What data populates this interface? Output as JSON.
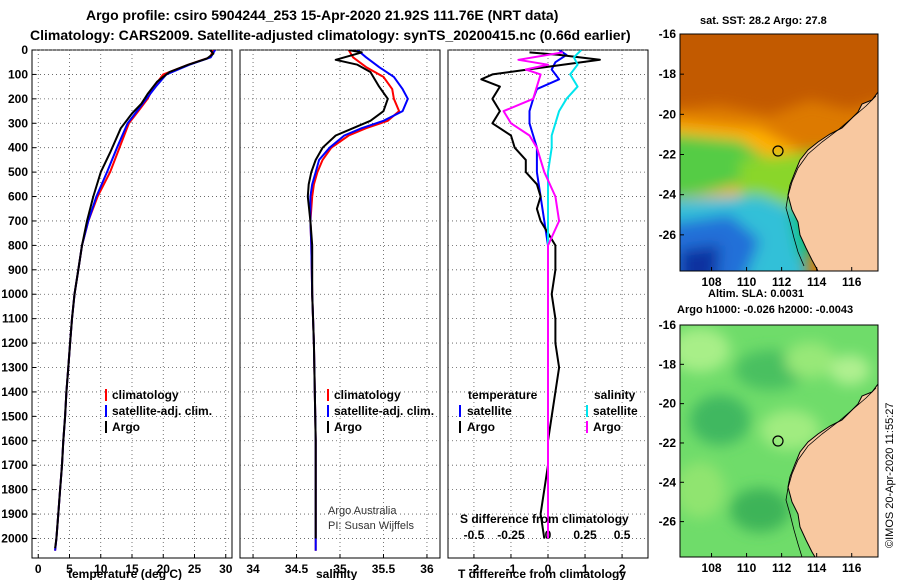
{
  "title_line1": "Argo profile: csiro 5904244_253 15-Apr-2020 21.92S 111.76E (NRT data)",
  "title_line2": "Climatology: CARS2009. Satellite-adjusted climatology: synTS_20200415.nc (0.66d earlier)",
  "credit": "©IMOS 20-Apr-2020 11:55:27",
  "colors": {
    "argo": "#000000",
    "clim": "#ff0000",
    "sat": "#0000ff",
    "sal_sat": "#00e5ee",
    "sal_argo": "#ff00ff",
    "land": "#f8c8a0"
  },
  "chart_data": [
    {
      "type": "line",
      "xlabel": "temperature (deg C)",
      "xticks": [
        "0",
        "5",
        "10",
        "15",
        "20",
        "25",
        "30"
      ],
      "xlim": [
        -1,
        31
      ],
      "ylim": [
        2080,
        0
      ],
      "yticks": [
        "0",
        "100",
        "200",
        "300",
        "400",
        "500",
        "600",
        "700",
        "800",
        "900",
        "1000",
        "1100",
        "1200",
        "1300",
        "1400",
        "1500",
        "1600",
        "1700",
        "1800",
        "1900",
        "2000"
      ],
      "legend": [
        "climatology",
        "satellite-adj. clim.",
        "Argo"
      ],
      "series": [
        {
          "name": "climatology",
          "color": "#ff0000",
          "points": [
            [
              28,
              0
            ],
            [
              27.5,
              30
            ],
            [
              24,
              60
            ],
            [
              20,
              100
            ],
            [
              18.5,
              150
            ],
            [
              17.5,
              200
            ],
            [
              16,
              250
            ],
            [
              14.5,
              300
            ],
            [
              13,
              400
            ],
            [
              11.5,
              500
            ],
            [
              9.5,
              600
            ],
            [
              8,
              700
            ],
            [
              7,
              800
            ],
            [
              6.4,
              900
            ],
            [
              5.8,
              1000
            ],
            [
              5.4,
              1100
            ],
            [
              5.1,
              1200
            ],
            [
              4.8,
              1300
            ],
            [
              4.5,
              1400
            ],
            [
              4.3,
              1500
            ],
            [
              4,
              1600
            ],
            [
              3.8,
              1700
            ],
            [
              3.5,
              1800
            ],
            [
              3.2,
              1900
            ],
            [
              2.9,
              2000
            ],
            [
              2.7,
              2050
            ]
          ]
        },
        {
          "name": "satellite-adj. clim.",
          "color": "#0000ff",
          "points": [
            [
              28.3,
              0
            ],
            [
              27.6,
              30
            ],
            [
              24.2,
              60
            ],
            [
              20.5,
              100
            ],
            [
              18.8,
              150
            ],
            [
              17.3,
              200
            ],
            [
              15.8,
              250
            ],
            [
              14.3,
              300
            ],
            [
              12.6,
              400
            ],
            [
              11,
              500
            ],
            [
              9.3,
              600
            ],
            [
              8,
              700
            ],
            [
              7,
              800
            ],
            [
              6.4,
              900
            ],
            [
              5.8,
              1000
            ],
            [
              5.4,
              1100
            ],
            [
              5.1,
              1200
            ],
            [
              4.8,
              1300
            ],
            [
              4.5,
              1400
            ],
            [
              4.3,
              1500
            ],
            [
              4,
              1600
            ],
            [
              3.8,
              1700
            ],
            [
              3.5,
              1800
            ],
            [
              3.2,
              1900
            ],
            [
              2.9,
              2000
            ],
            [
              2.7,
              2050
            ]
          ]
        },
        {
          "name": "Argo",
          "color": "#000000",
          "points": [
            [
              27.5,
              0
            ],
            [
              28,
              15
            ],
            [
              27,
              35
            ],
            [
              24,
              60
            ],
            [
              21,
              90
            ],
            [
              19,
              130
            ],
            [
              17.5,
              180
            ],
            [
              16.5,
              220
            ],
            [
              15,
              260
            ],
            [
              13.2,
              320
            ],
            [
              11.5,
              420
            ],
            [
              10,
              500
            ],
            [
              8.8,
              600
            ],
            [
              7.8,
              700
            ],
            [
              7,
              800
            ],
            [
              6.4,
              900
            ],
            [
              5.8,
              1000
            ],
            [
              5.4,
              1100
            ],
            [
              5.1,
              1200
            ],
            [
              4.8,
              1300
            ],
            [
              4.5,
              1400
            ],
            [
              4.3,
              1500
            ],
            [
              4,
              1600
            ],
            [
              3.8,
              1700
            ],
            [
              3.5,
              1800
            ],
            [
              3.2,
              1900
            ],
            [
              2.9,
              2000
            ],
            [
              2.7,
              2040
            ]
          ]
        }
      ]
    },
    {
      "type": "line",
      "xlabel": "salinity",
      "xticks": [
        "34",
        "34.5",
        "35",
        "35.5",
        "36"
      ],
      "xlim": [
        33.85,
        36.15
      ],
      "ylim": [
        2080,
        0
      ],
      "legend": [
        "climatology",
        "satellite-adj. clim.",
        "Argo"
      ],
      "notes": [
        "Argo Australia",
        "PI: Susan Wijffels"
      ],
      "series": [
        {
          "name": "climatology",
          "color": "#ff0000",
          "points": [
            [
              35.1,
              0
            ],
            [
              35.15,
              30
            ],
            [
              35.3,
              70
            ],
            [
              35.5,
              110
            ],
            [
              35.6,
              160
            ],
            [
              35.62,
              200
            ],
            [
              35.68,
              250
            ],
            [
              35.55,
              290
            ],
            [
              35.3,
              320
            ],
            [
              35.1,
              350
            ],
            [
              34.9,
              400
            ],
            [
              34.8,
              450
            ],
            [
              34.74,
              500
            ],
            [
              34.7,
              550
            ],
            [
              34.68,
              600
            ],
            [
              34.66,
              700
            ],
            [
              34.67,
              800
            ],
            [
              34.68,
              1000
            ],
            [
              34.7,
              1200
            ],
            [
              34.71,
              1400
            ],
            [
              34.72,
              1600
            ],
            [
              34.72,
              2050
            ]
          ]
        },
        {
          "name": "satellite-adj. clim.",
          "color": "#0000ff",
          "points": [
            [
              35.2,
              0
            ],
            [
              35.3,
              30
            ],
            [
              35.45,
              70
            ],
            [
              35.62,
              110
            ],
            [
              35.72,
              160
            ],
            [
              35.78,
              200
            ],
            [
              35.72,
              250
            ],
            [
              35.5,
              290
            ],
            [
              35.25,
              320
            ],
            [
              35.05,
              350
            ],
            [
              34.88,
              400
            ],
            [
              34.76,
              450
            ],
            [
              34.72,
              500
            ],
            [
              34.68,
              550
            ],
            [
              34.66,
              600
            ],
            [
              34.66,
              700
            ],
            [
              34.67,
              800
            ],
            [
              34.68,
              1000
            ],
            [
              34.7,
              1200
            ],
            [
              34.71,
              1400
            ],
            [
              34.72,
              1600
            ],
            [
              34.72,
              2050
            ]
          ]
        },
        {
          "name": "Argo",
          "color": "#000000",
          "points": [
            [
              35.1,
              0
            ],
            [
              35.25,
              10
            ],
            [
              34.95,
              40
            ],
            [
              35.2,
              60
            ],
            [
              35.35,
              90
            ],
            [
              35.45,
              150
            ],
            [
              35.55,
              200
            ],
            [
              35.5,
              250
            ],
            [
              35.35,
              290
            ],
            [
              35.15,
              320
            ],
            [
              34.95,
              350
            ],
            [
              34.8,
              400
            ],
            [
              34.72,
              450
            ],
            [
              34.67,
              500
            ],
            [
              34.64,
              550
            ],
            [
              34.63,
              600
            ],
            [
              34.66,
              700
            ],
            [
              34.68,
              800
            ],
            [
              34.68,
              1000
            ],
            [
              34.7,
              1200
            ],
            [
              34.71,
              1400
            ],
            [
              34.72,
              1600
            ],
            [
              34.72,
              2000
            ]
          ]
        }
      ]
    },
    {
      "type": "line",
      "xlabel": "T difference from climatology",
      "xticks": [
        "-2",
        "-1",
        "0",
        "1",
        "2"
      ],
      "xlim": [
        -2.7,
        2.7
      ],
      "ylim": [
        2080,
        0
      ],
      "xlabel2": "S difference from climatology",
      "xticks2": [
        "-0.5",
        "-0.25",
        "0",
        "0.25",
        "0.5"
      ],
      "legend_left_title": "temperature",
      "legend_right_title": "salinity",
      "legend_left": [
        "satellite",
        "Argo"
      ],
      "legend_right": [
        "satellite",
        "Argo"
      ],
      "series": [
        {
          "name": "satellite",
          "color": "#0000ff",
          "points": [
            [
              0.3,
              0
            ],
            [
              0.5,
              20
            ],
            [
              0.2,
              50
            ],
            [
              0.1,
              80
            ],
            [
              0.3,
              120
            ],
            [
              -0.3,
              160
            ],
            [
              -0.4,
              200
            ],
            [
              -0.5,
              250
            ],
            [
              -0.5,
              300
            ],
            [
              -0.4,
              350
            ],
            [
              -0.3,
              400
            ],
            [
              -0.3,
              500
            ],
            [
              -0.2,
              600
            ],
            [
              -0.1,
              700
            ],
            [
              0,
              800
            ],
            [
              0,
              900
            ],
            [
              0,
              1000
            ]
          ]
        },
        {
          "name": "Argo",
          "color": "#000000",
          "points": [
            [
              -0.5,
              10
            ],
            [
              0.3,
              20
            ],
            [
              1.4,
              40
            ],
            [
              0.4,
              60
            ],
            [
              -1.5,
              100
            ],
            [
              -1.8,
              120
            ],
            [
              -1.3,
              150
            ],
            [
              -1.5,
              200
            ],
            [
              -1.3,
              250
            ],
            [
              -1.5,
              300
            ],
            [
              -1,
              350
            ],
            [
              -0.9,
              400
            ],
            [
              -0.6,
              450
            ],
            [
              -0.6,
              500
            ],
            [
              -0.3,
              550
            ],
            [
              -0.2,
              600
            ],
            [
              -0.3,
              650
            ],
            [
              -0.2,
              700
            ],
            [
              0,
              750
            ],
            [
              0.2,
              800
            ],
            [
              0.2,
              900
            ],
            [
              0.1,
              1000
            ],
            [
              0.2,
              1100
            ],
            [
              0.2,
              1200
            ],
            [
              0.3,
              1300
            ],
            [
              0.2,
              1400
            ],
            [
              0.1,
              1500
            ],
            [
              0,
              1600
            ],
            [
              0,
              1700
            ],
            [
              -0.1,
              1800
            ],
            [
              -0.2,
              1900
            ],
            [
              -0.1,
              2000
            ]
          ]
        },
        {
          "name": "salinity satellite",
          "color": "#00e5ee",
          "points": [
            [
              0.9,
              0
            ],
            [
              0.7,
              30
            ],
            [
              0.8,
              60
            ],
            [
              0.6,
              100
            ],
            [
              0.8,
              150
            ],
            [
              0.5,
              200
            ],
            [
              0.3,
              250
            ],
            [
              0.2,
              300
            ],
            [
              0.1,
              350
            ],
            [
              0.1,
              400
            ],
            [
              0,
              500
            ],
            [
              0,
              600
            ],
            [
              0,
              700
            ],
            [
              0,
              800
            ],
            [
              0,
              900
            ],
            [
              0,
              1000
            ]
          ]
        },
        {
          "name": "salinity Argo",
          "color": "#ff00ff",
          "points": [
            [
              0.4,
              10
            ],
            [
              -0.8,
              40
            ],
            [
              0,
              60
            ],
            [
              -0.6,
              80
            ],
            [
              -0.2,
              100
            ],
            [
              -0.3,
              150
            ],
            [
              -0.4,
              200
            ],
            [
              -1.2,
              250
            ],
            [
              -1,
              300
            ],
            [
              -0.5,
              350
            ],
            [
              -0.3,
              400
            ],
            [
              -0.1,
              500
            ],
            [
              0.2,
              600
            ],
            [
              0.3,
              700
            ],
            [
              0,
              800
            ],
            [
              0,
              900
            ],
            [
              0,
              1000
            ],
            [
              0,
              1200
            ],
            [
              0,
              1400
            ],
            [
              0,
              1600
            ],
            [
              0,
              1800
            ],
            [
              0,
              2000
            ]
          ]
        }
      ]
    }
  ],
  "maps": [
    {
      "title": "sat. SST: 28.2 Argo: 27.8",
      "xticks": [
        "108",
        "110",
        "112",
        "114",
        "116"
      ],
      "yticks": [
        "-16",
        "-18",
        "-20",
        "-22",
        "-24",
        "-26"
      ],
      "xlim": [
        106.2,
        117.5
      ],
      "ylim": [
        -27.8,
        -16
      ]
    },
    {
      "title_line1": "Altim. SLA: 0.0031",
      "title_line2": "Argo h1000: -0.026 h2000: -0.0043",
      "xticks": [
        "108",
        "110",
        "112",
        "114",
        "116"
      ],
      "yticks": [
        "-16",
        "-18",
        "-20",
        "-22",
        "-24",
        "-26"
      ],
      "xlim": [
        106.2,
        117.5
      ],
      "ylim": [
        -27.8,
        -16
      ]
    }
  ],
  "argo_position": {
    "lon": 111.76,
    "lat": -21.92
  }
}
